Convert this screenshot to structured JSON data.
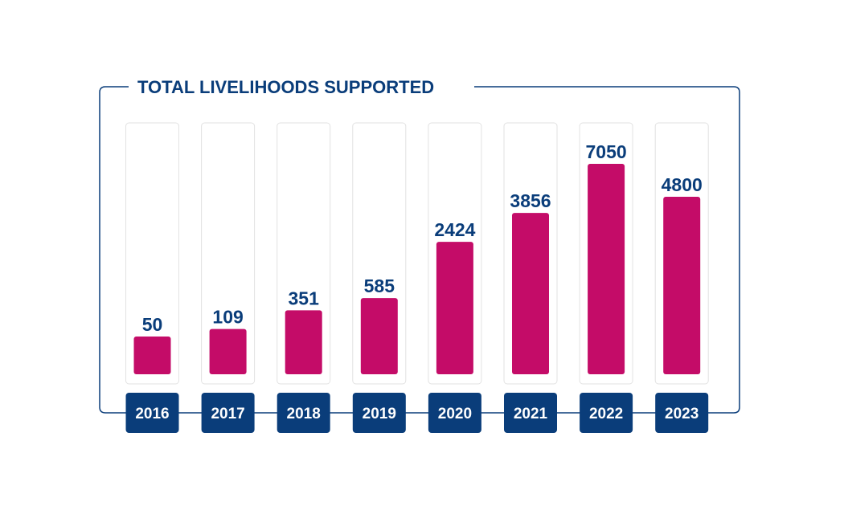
{
  "chart_data": {
    "type": "bar",
    "title": "TOTAL LIVELIHOODS SUPPORTED",
    "categories": [
      "2016",
      "2017",
      "2018",
      "2019",
      "2020",
      "2021",
      "2022",
      "2023"
    ],
    "values": [
      50,
      109,
      351,
      585,
      2424,
      3856,
      7050,
      4800
    ],
    "xlabel": "",
    "ylabel": "",
    "grid": false,
    "legend": "none"
  },
  "colors": {
    "bar": "#c40c68",
    "label": "#0a3d7a",
    "year_box": "#0a3d7a",
    "frame": "#0a3d7a",
    "track": "#e2e2e2"
  }
}
